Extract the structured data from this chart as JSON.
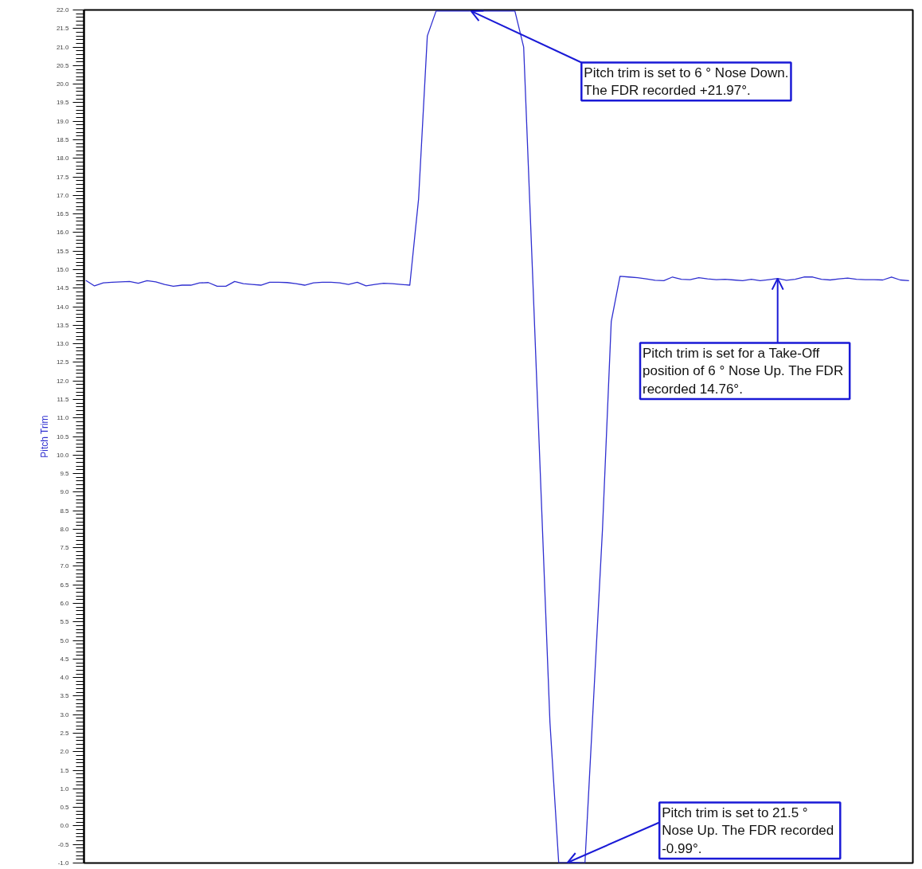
{
  "chart_data": {
    "type": "line",
    "ylabel": "Pitch Trim",
    "tick_labels": "y",
    "categories": [
      null,
      null,
      null,
      null,
      null,
      null,
      null,
      null,
      null,
      null,
      null,
      null,
      null,
      null,
      null,
      null,
      null,
      null,
      null,
      null,
      null,
      null,
      null,
      null,
      null,
      null,
      null,
      null,
      null,
      null,
      null,
      null,
      null,
      null,
      null,
      null,
      null,
      null,
      null,
      null,
      null,
      null,
      null,
      null,
      null,
      null,
      null,
      null,
      null,
      null,
      null,
      null,
      null,
      null,
      null,
      null,
      null,
      null,
      null,
      null,
      null,
      null,
      null,
      null,
      null,
      null,
      null,
      null,
      null,
      null,
      null,
      null,
      null,
      null,
      null,
      null,
      null,
      null,
      null,
      null,
      null,
      null,
      null,
      null,
      null,
      null,
      null,
      null,
      null,
      null,
      null,
      null,
      null,
      null,
      null
    ],
    "series": [
      {
        "color": "#2f2fd0",
        "values": [
          14.71,
          14.56,
          14.64,
          14.66,
          14.67,
          14.68,
          14.63,
          14.7,
          14.67,
          14.6,
          14.55,
          14.58,
          14.58,
          14.64,
          14.65,
          14.55,
          14.55,
          14.68,
          14.62,
          14.6,
          14.58,
          14.66,
          14.66,
          14.65,
          14.62,
          14.58,
          14.64,
          14.66,
          14.66,
          14.64,
          14.6,
          14.66,
          14.56,
          14.6,
          14.63,
          14.62,
          14.6,
          14.58,
          16.9,
          21.3,
          21.97,
          21.97,
          21.97,
          21.97,
          21.97,
          21.97,
          21.97,
          21.97,
          21.97,
          21.97,
          21.0,
          15.0,
          8.9,
          2.8,
          -0.99,
          -0.99,
          -0.99,
          -0.99,
          3.5,
          8.0,
          13.6,
          14.82,
          14.8,
          14.78,
          14.75,
          14.71,
          14.7,
          14.8,
          14.74,
          14.73,
          14.78,
          14.75,
          14.73,
          14.74,
          14.72,
          14.7,
          14.74,
          14.7,
          14.73,
          14.76,
          14.71,
          14.74,
          14.8,
          14.8,
          14.74,
          14.72,
          14.75,
          14.77,
          14.74,
          14.73,
          14.73,
          14.72,
          14.8,
          14.72,
          14.7
        ]
      }
    ],
    "ylim": [
      -1.0,
      22.0
    ],
    "yticks": [
      {
        "value": -1,
        "label": "-1.0"
      },
      {
        "value": -0.5,
        "label": "-0.5"
      },
      {
        "value": 0,
        "label": "0.0"
      },
      {
        "value": 0.5,
        "label": "0.5"
      },
      {
        "value": 1,
        "label": "1.0"
      },
      {
        "value": 1.5,
        "label": "1.5"
      },
      {
        "value": 2,
        "label": "2.0"
      },
      {
        "value": 2.5,
        "label": "2.5"
      },
      {
        "value": 3,
        "label": "3.0"
      },
      {
        "value": 3.5,
        "label": "3.5"
      },
      {
        "value": 4,
        "label": "4.0"
      },
      {
        "value": 4.5,
        "label": "4.5"
      },
      {
        "value": 5,
        "label": "5.0"
      },
      {
        "value": 5.5,
        "label": "5.5"
      },
      {
        "value": 6,
        "label": "6.0"
      },
      {
        "value": 6.5,
        "label": "6.5"
      },
      {
        "value": 7,
        "label": "7.0"
      },
      {
        "value": 7.5,
        "label": "7.5"
      },
      {
        "value": 8,
        "label": "8.0"
      },
      {
        "value": 8.5,
        "label": "8.5"
      },
      {
        "value": 9,
        "label": "9.0"
      },
      {
        "value": 9.5,
        "label": "9.5"
      },
      {
        "value": 10,
        "label": "10.0"
      },
      {
        "value": 10.5,
        "label": "10.5"
      },
      {
        "value": 11,
        "label": "11.0"
      },
      {
        "value": 11.5,
        "label": "11.5"
      },
      {
        "value": 12,
        "label": "12.0"
      },
      {
        "value": 12.5,
        "label": "12.5"
      },
      {
        "value": 13,
        "label": "13.0"
      },
      {
        "value": 13.5,
        "label": "13.5"
      },
      {
        "value": 14,
        "label": "14.0"
      },
      {
        "value": 14.5,
        "label": "14.5"
      },
      {
        "value": 15,
        "label": "15.0"
      },
      {
        "value": 15.5,
        "label": "15.5"
      },
      {
        "value": 16,
        "label": "16.0"
      },
      {
        "value": 16.5,
        "label": "16.5"
      },
      {
        "value": 17,
        "label": "17.0"
      },
      {
        "value": 17.5,
        "label": "17.5"
      },
      {
        "value": 18,
        "label": "18.0"
      },
      {
        "value": 18.5,
        "label": "18.5"
      },
      {
        "value": 19,
        "label": "19.0"
      },
      {
        "value": 19.5,
        "label": "19.5"
      },
      {
        "value": 20,
        "label": "20.0"
      },
      {
        "value": 20.5,
        "label": "20.5"
      },
      {
        "value": 21,
        "label": "21.0"
      },
      {
        "value": 21.5,
        "label": "21.5"
      },
      {
        "value": 22,
        "label": "22.0"
      }
    ],
    "annotations": [
      "Pitch trim is set to 6 ° Nose Down.\nThe FDR recorded +21.97°.",
      "Pitch trim is set for a Take-Off\nposition of 6 ° Nose Up.  The FDR\nrecorded 14.76°.",
      "Pitch trim is set to 21.5 °\nNose Up.  The FDR recorded\n-0.99°."
    ]
  }
}
